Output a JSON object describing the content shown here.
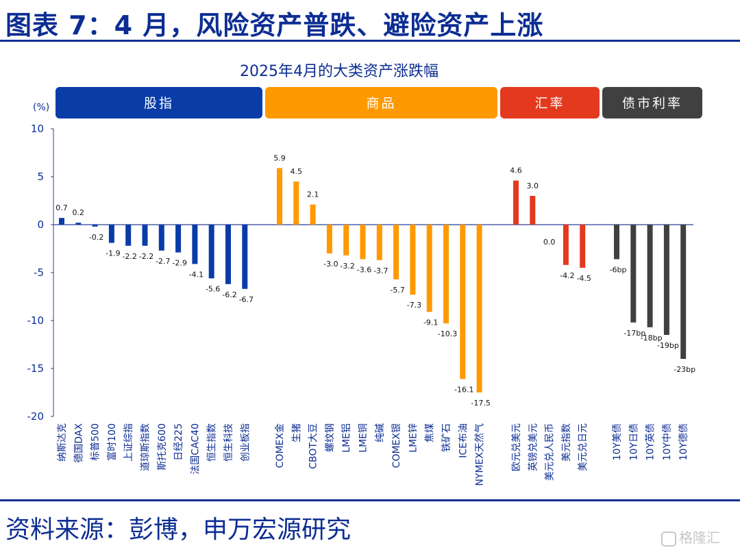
{
  "page": {
    "figure_title": "图表 7：4 月，风险资产普跌、避险资产上涨",
    "source": "资料来源：彭博，申万宏源研究",
    "watermark": "格隆汇"
  },
  "chart_data": {
    "type": "bar",
    "title": "2025年4月的大类资产涨跌幅",
    "ylabel": "(%)",
    "ylim": [
      -20,
      10
    ],
    "yticks": [
      10,
      5,
      0,
      -5,
      -10,
      -15,
      -20
    ],
    "groups": [
      {
        "name": "股指",
        "color": "#0a3ca8",
        "header_color": "#0a3ca8",
        "items": [
          {
            "label": "纳斯达克",
            "value": 0.7,
            "text": "0.7"
          },
          {
            "label": "德国DAX",
            "value": 0.2,
            "text": "0.2"
          },
          {
            "label": "标普500",
            "value": -0.2,
            "text": "-0.2"
          },
          {
            "label": "富时100",
            "value": -1.9,
            "text": "-1.9"
          },
          {
            "label": "上证综指",
            "value": -2.2,
            "text": "-2.2"
          },
          {
            "label": "道琼斯指数",
            "value": -2.2,
            "text": "-2.2"
          },
          {
            "label": "斯托克600",
            "value": -2.7,
            "text": "-2.7"
          },
          {
            "label": "日经225",
            "value": -2.9,
            "text": "-2.9"
          },
          {
            "label": "法国CAC40",
            "value": -4.1,
            "text": "-4.1"
          },
          {
            "label": "恒生指数",
            "value": -5.6,
            "text": "-5.6"
          },
          {
            "label": "恒生科技",
            "value": -6.2,
            "text": "-6.2"
          },
          {
            "label": "创业板指",
            "value": -6.7,
            "text": "-6.7"
          }
        ]
      },
      {
        "name": "商品",
        "color": "#ff9900",
        "header_color": "#ff9900",
        "items": [
          {
            "label": "COMEX金",
            "value": 5.9,
            "text": "5.9"
          },
          {
            "label": "生猪",
            "value": 4.5,
            "text": "4.5"
          },
          {
            "label": "CBOT大豆",
            "value": 2.1,
            "text": "2.1"
          },
          {
            "label": "螺纹钢",
            "value": -3.0,
            "text": "-3.0"
          },
          {
            "label": "LME铝",
            "value": -3.2,
            "text": "-3.2"
          },
          {
            "label": "LME铜",
            "value": -3.6,
            "text": "-3.6"
          },
          {
            "label": "纯碱",
            "value": -3.7,
            "text": "-3.7"
          },
          {
            "label": "COMEX银",
            "value": -5.7,
            "text": "-5.7"
          },
          {
            "label": "LME锌",
            "value": -7.3,
            "text": "-7.3"
          },
          {
            "label": "焦煤",
            "value": -9.1,
            "text": "-9.1"
          },
          {
            "label": "铁矿石",
            "value": -10.3,
            "text": "-10.3"
          },
          {
            "label": "ICE布油",
            "value": -16.1,
            "text": "-16.1"
          },
          {
            "label": "NYMEX天然气",
            "value": -17.5,
            "text": "-17.5"
          }
        ]
      },
      {
        "name": "汇率",
        "color": "#e33a1f",
        "header_color": "#e33a1f",
        "items": [
          {
            "label": "欧元兑美元",
            "value": 4.6,
            "text": "4.6"
          },
          {
            "label": "英镑兑美元",
            "value": 3.0,
            "text": "3.0"
          },
          {
            "label": "美元兑人民币",
            "value": 0.0,
            "text": "0.0"
          },
          {
            "label": "美元指数",
            "value": -4.2,
            "text": "-4.2"
          },
          {
            "label": "美元兑日元",
            "value": -4.5,
            "text": "-4.5"
          }
        ]
      },
      {
        "name": "债市利率",
        "color": "#404040",
        "header_color": "#404040",
        "items": [
          {
            "label": "10Y美债",
            "value": -3.6,
            "text": "-6bp"
          },
          {
            "label": "10Y日债",
            "value": -10.2,
            "text": "-17bp"
          },
          {
            "label": "10Y英债",
            "value": -10.7,
            "text": "-18bp"
          },
          {
            "label": "10Y中债",
            "value": -11.5,
            "text": "-19bp"
          },
          {
            "label": "10Y德债",
            "value": -14.0,
            "text": "-23bp"
          }
        ]
      }
    ]
  }
}
